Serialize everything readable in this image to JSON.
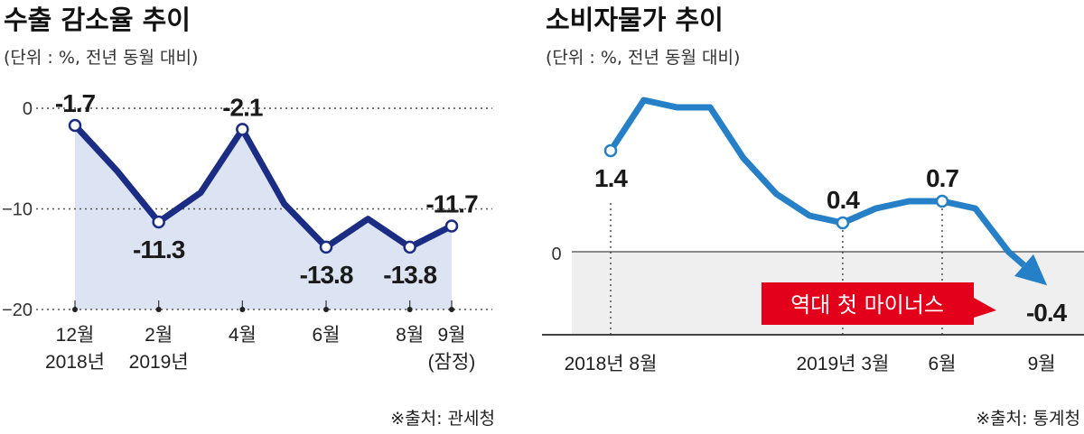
{
  "chart_data": [
    {
      "type": "area",
      "title": "수출 감소율 추이",
      "subtitle": "(단위 : %, 전년 동월 대비)",
      "source": "※출처: 관세청",
      "ylim": [
        -20,
        0
      ],
      "yticks": [
        0,
        -10,
        -20
      ],
      "ytick_labels": [
        "0",
        "−10",
        "−20"
      ],
      "x": [
        "2018-12",
        "2019-01",
        "2019-02",
        "2019-03",
        "2019-04",
        "2019-05",
        "2019-06",
        "2019-07",
        "2019-08",
        "2019-09"
      ],
      "values": [
        -1.7,
        -6.2,
        -11.3,
        -8.4,
        -2.1,
        -9.5,
        -13.8,
        -11.0,
        -13.8,
        -11.7
      ],
      "labeled_points": [
        {
          "index": 0,
          "label": "-1.7",
          "pos": "above"
        },
        {
          "index": 2,
          "label": "-11.3",
          "pos": "below"
        },
        {
          "index": 4,
          "label": "-2.1",
          "pos": "above"
        },
        {
          "index": 6,
          "label": "-13.8",
          "pos": "below"
        },
        {
          "index": 8,
          "label": "-13.8",
          "pos": "below"
        },
        {
          "index": 9,
          "label": "-11.7",
          "pos": "above",
          "highlight": true
        }
      ],
      "x_tick_labels": [
        {
          "index": 0,
          "lines": [
            "12월",
            "2018년"
          ]
        },
        {
          "index": 2,
          "lines": [
            "2월",
            "2019년"
          ]
        },
        {
          "index": 4,
          "lines": [
            "4월"
          ]
        },
        {
          "index": 6,
          "lines": [
            "6월"
          ]
        },
        {
          "index": 8,
          "lines": [
            "8월"
          ]
        },
        {
          "index": 9,
          "lines": [
            "9월",
            "(잠정)"
          ]
        }
      ],
      "grid": "dotted",
      "colors": {
        "line": "#1b2c85",
        "fill": "#dce3f3",
        "highlight": "#1b2c85"
      }
    },
    {
      "type": "line",
      "title": "소비자물가 추이",
      "subtitle": "(단위 : %, 전년 동월 대비)",
      "source": "※출처: 통계청",
      "yticks": [
        0
      ],
      "ytick_labels": [
        "0"
      ],
      "x": [
        "2018-08",
        "2018-09",
        "2018-10",
        "2018-11",
        "2018-12",
        "2019-01",
        "2019-02",
        "2019-03",
        "2019-04",
        "2019-05",
        "2019-06",
        "2019-07",
        "2019-08",
        "2019-09"
      ],
      "values": [
        1.4,
        2.1,
        2.0,
        2.0,
        1.3,
        0.8,
        0.5,
        0.4,
        0.6,
        0.7,
        0.7,
        0.6,
        0.0,
        -0.4
      ],
      "labeled_points": [
        {
          "index": 0,
          "label": "1.4",
          "pos": "below"
        },
        {
          "index": 7,
          "label": "0.4",
          "pos": "above"
        },
        {
          "index": 10,
          "label": "0.7",
          "pos": "above"
        },
        {
          "index": 13,
          "label": "-0.4",
          "pos": "below"
        }
      ],
      "x_tick_labels": [
        {
          "index": 0,
          "text": "2018년 8월"
        },
        {
          "index": 7,
          "text": "2019년 3월"
        },
        {
          "index": 10,
          "text": "6월"
        },
        {
          "index": 13,
          "text": "9월"
        }
      ],
      "annotation": "역대 첫 마이너스",
      "colors": {
        "line": "#2680c8",
        "negative_zone": "#efefef",
        "annotation": "#e2001a"
      }
    }
  ]
}
